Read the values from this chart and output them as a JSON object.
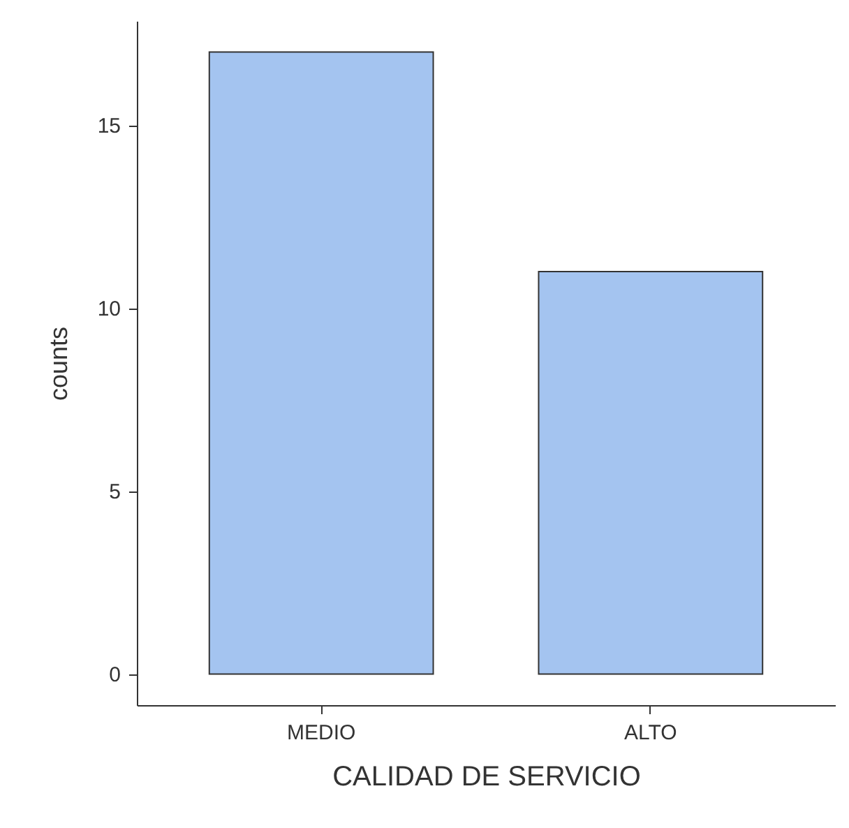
{
  "chart_data": {
    "type": "bar",
    "xlabel": "CALIDAD DE SERVICIO",
    "ylabel": "counts",
    "categories": [
      "MEDIO",
      "ALTO"
    ],
    "series": [
      {
        "color": "#a4c4f0",
        "values": [
          17,
          11
        ]
      }
    ],
    "ylim": [
      -0.85,
      17.85
    ],
    "yticks": [
      0,
      5,
      10,
      15
    ],
    "grid": false
  }
}
